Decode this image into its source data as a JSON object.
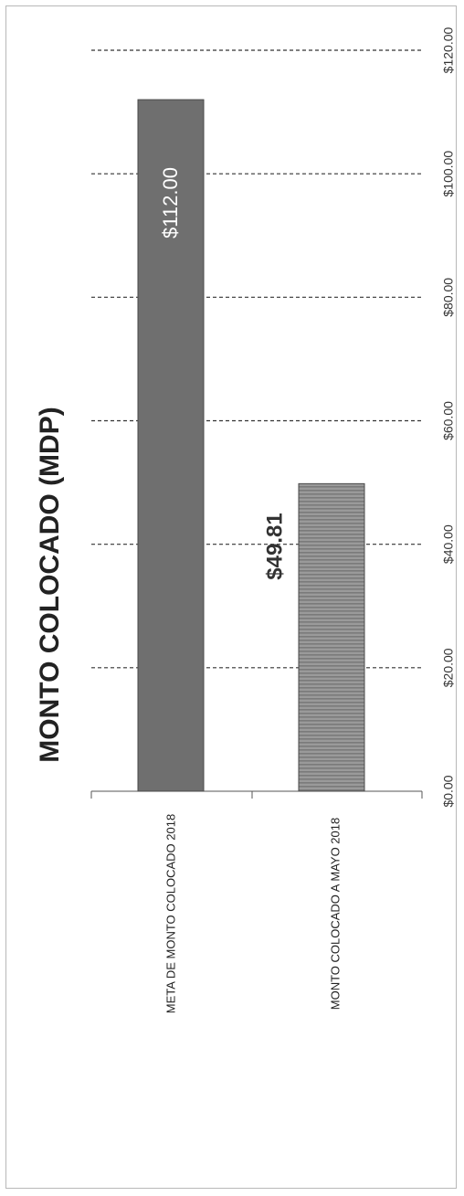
{
  "chart_data": {
    "type": "bar",
    "orientation": "horizontal",
    "title": "MONTO COLOCADO (MDP)",
    "categories": [
      "META DE MONTO COLOCADO 2018",
      "MONTO COLOCADO A MAYO 2018"
    ],
    "values": [
      112.0,
      49.81
    ],
    "data_labels": [
      "$112.00",
      "$49.81"
    ],
    "value_ticks": [
      "$0.00",
      "$20.00",
      "$40.00",
      "$60.00",
      "$80.00",
      "$100.00",
      "$120.00"
    ],
    "value_range": [
      0,
      120
    ],
    "grid": true,
    "legend": "none",
    "bar_colors": [
      "#6f6f6f",
      "#8c8c8c"
    ]
  }
}
